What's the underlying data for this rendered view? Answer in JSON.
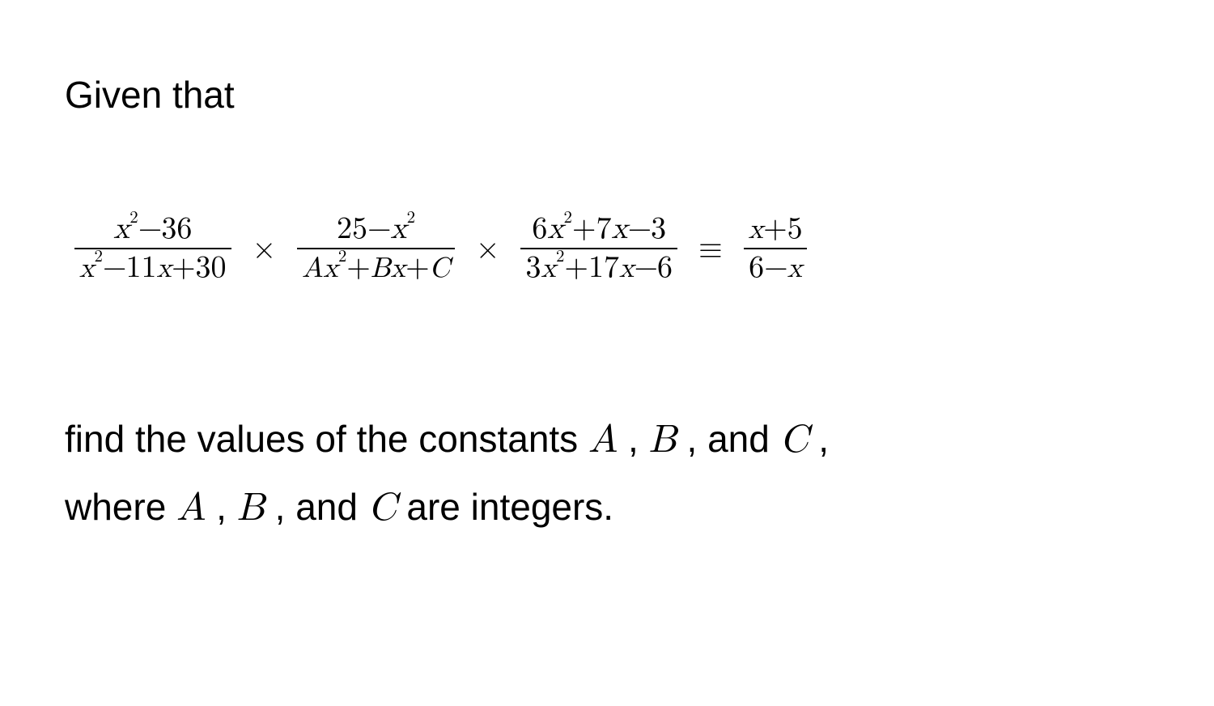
{
  "intro": "Given that",
  "equation": {
    "frac1": {
      "num_html": "<span class='mathvar'>x</span><sup class='p2'>2</sup><span class='minus'>−</span>36",
      "den_html": "<span class='mathvar sm'>x</span><sup class='p2'>2</sup><span class='minus'>−</span>11<span class='mathvar sm'>x</span>+30"
    },
    "op1": "×",
    "frac2": {
      "num_html": "25<span class='minus'>−</span><span class='mathvar'>x</span><sup class='p2'>2</sup>",
      "den_html": "<span class='mathvar sm'>A</span><span class='mathvar sm'>x</span><sup class='p2'>2</sup>+<span class='mathvar sm'>B</span><span class='mathvar sm'>x</span>+<span class='mathvar sm'>C</span>"
    },
    "op2": "×",
    "frac3": {
      "num_html": "6<span class='mathvar'>x</span><sup class='p2'>2</sup>+7<span class='mathvar'>x</span><span class='minus'>−</span>3",
      "den_html": "3<span class='mathvar sm'>x</span><sup class='p2'>2</sup>+17<span class='mathvar sm'>x</span><span class='minus'>−</span>6"
    },
    "eq": "≡",
    "frac4": {
      "num_html": "<span class='mathvar sm'>x</span>+5",
      "den_html": "6<span class='minus'>−</span><span class='mathvar sm'>x</span>"
    }
  },
  "closing_line1_pre": "find the values of the constants ",
  "closing_line1_A": "A",
  "closing_comma": " , ",
  "closing_line1_B": "B",
  "closing_and": " , and ",
  "closing_line1_C": "C",
  "closing_line1_post": " ,",
  "closing_line2_pre": "where ",
  "closing_line2_A": "A",
  "closing_line2_B": "B",
  "closing_line2_C": "C",
  "closing_line2_post": " are integers."
}
